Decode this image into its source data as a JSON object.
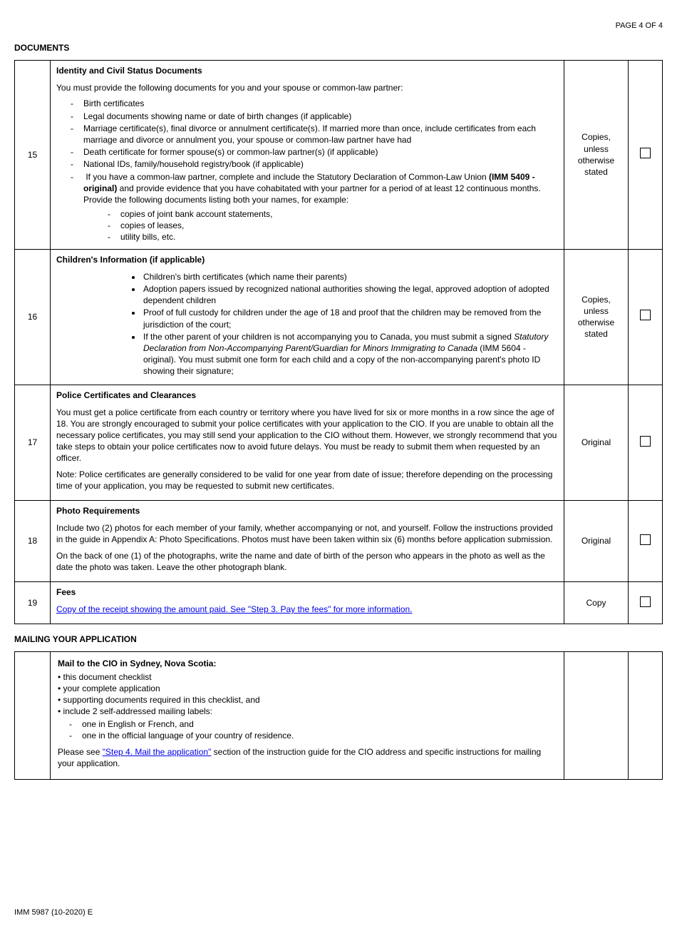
{
  "page_number": "PAGE 4 OF 4",
  "section_documents": "DOCUMENTS",
  "section_mailing": "MAILING YOUR APPLICATION",
  "footer": "IMM 5987 (10-2020) E",
  "rows": {
    "r15": {
      "num": "15",
      "title": "Identity and Civil Status Documents",
      "intro": "You must provide the following documents for you and your spouse or common-law partner:",
      "items": {
        "a": "Birth certificates",
        "b": "Legal documents showing name or date of birth changes (if applicable)",
        "c": "Marriage certificate(s), final divorce or annulment certificate(s). If married more than once, include certificates from each marriage and divorce or annulment you, your spouse or common-law partner have had",
        "d": "Death certificate for former spouse(s) or common-law partner(s) (if applicable)",
        "e": "National IDs, family/household registry/book (if applicable)",
        "f_pre": "If you have a common-law partner, complete and include the Statutory Declaration of Common-Law Union ",
        "f_bold": "(IMM 5409  - original)",
        "f_post": " and provide evidence that you have cohabitated with your partner for a period of at least 12 continuous months. Provide the following documents listing both your names, for example:",
        "sub_a": "copies of joint bank account statements,",
        "sub_b": "copies of leases,",
        "sub_c": "utility bills, etc."
      },
      "type": "Copies, unless otherwise stated"
    },
    "r16": {
      "num": "16",
      "title": "Children's Information (if applicable)",
      "items": {
        "a": "Children's birth certificates (which name their parents)",
        "b": "Adoption papers issued by recognized national authorities showing the legal, approved adoption of adopted dependent children",
        "c": "Proof of full custody for children under the age of 18 and proof that the children may be removed from the jurisdiction of the court;",
        "d_pre": "If the other parent of your children is not accompanying you to Canada, you must submit a signed ",
        "d_ital": "Statutory Declaration from Non-Accompanying Parent/Guardian for Minors Immigrating to Canada",
        "d_post": " (IMM 5604 - original). You must submit one form for each child and a copy of the non-accompanying parent's photo ID showing their signature;"
      },
      "type": "Copies, unless otherwise stated"
    },
    "r17": {
      "num": "17",
      "title": "Police Certificates and Clearances",
      "p1": "You must get a police certificate from each country or territory where you have lived for six or more months in a row since the age of 18. You are strongly encouraged to submit your police certificates with your application to the CIO. If you are unable to obtain all the necessary police certificates, you may still send your application to the CIO without them. However, we strongly recommend that you take steps to obtain your police certificates now to avoid future delays. You must be ready to submit them when requested by an officer.",
      "p2": "Note: Police certificates are generally considered to be valid for one year from date of issue; therefore depending on the processing time of your application, you may be requested to submit new certificates.",
      "type": "Original"
    },
    "r18": {
      "num": "18",
      "title": "Photo Requirements",
      "p1": "Include two (2) photos for each member of your family, whether accompanying or not, and yourself. Follow the instructions provided in the guide in Appendix A: Photo Specifications. Photos must have been taken within six (6) months before application submission.",
      "p2": "On the back of one (1) of the photographs, write the name and date of birth of the person who appears in the photo as well as the date the photo was taken. Leave the other photograph blank.",
      "type": "Original"
    },
    "r19": {
      "num": "19",
      "title": "Fees",
      "link": "Copy of the receipt showing the amount paid. See \"Step 3. Pay the fees\" for more information.",
      "type": "Copy"
    }
  },
  "mailing": {
    "title": "Mail to the CIO in Sydney, Nova Scotia:",
    "b1": "this document checklist",
    "b2": "your complete application",
    "b3": "supporting documents required in this checklist, and",
    "b4": "include 2 self-addressed mailing labels:",
    "s1": "one in English or French, and",
    "s2": "one in the official language of your country of residence.",
    "closing_pre": "Please see ",
    "closing_link": "\"Step 4. Mail the application\"",
    "closing_post": " section of the instruction guide for the CIO address and specific instructions for mailing your application."
  }
}
